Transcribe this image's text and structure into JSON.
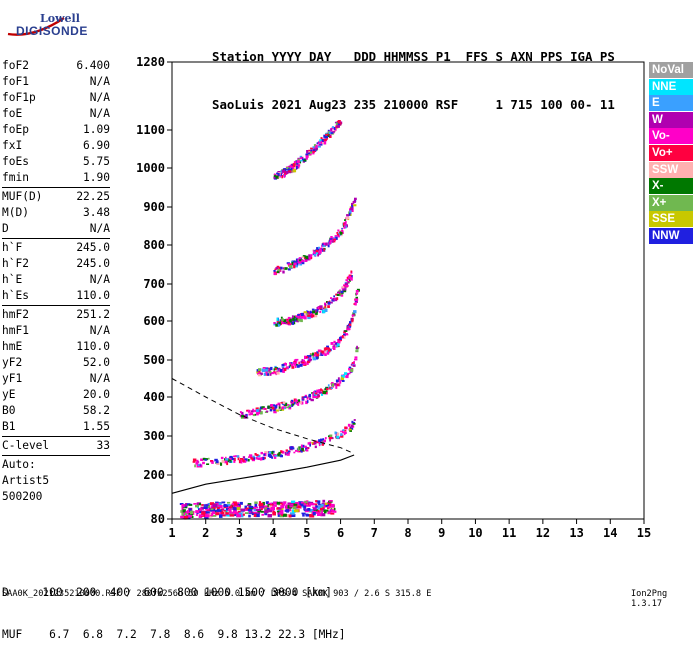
{
  "logo": {
    "line1": "Lowell",
    "line2": "DIGISONDE"
  },
  "header": {
    "row1": "Station YYYY DAY   DDD HHMMSS P1  FFS S AXN PPS IGA PS",
    "row2": "SaoLuis 2021 Aug23 235 210000 RSF     1 715 100 00- 11"
  },
  "params": [
    {
      "k": "foF2",
      "v": "6.400"
    },
    {
      "k": "foF1",
      "v": "N/A"
    },
    {
      "k": "foF1p",
      "v": "N/A"
    },
    {
      "k": "foE",
      "v": "N/A"
    },
    {
      "k": "foEp",
      "v": "1.09"
    },
    {
      "k": "fxI",
      "v": "6.90"
    },
    {
      "k": "foEs",
      "v": "5.75"
    },
    {
      "k": "fmin",
      "v": "1.90"
    },
    {
      "k": "MUF(D)",
      "v": "22.25",
      "sep": true
    },
    {
      "k": "M(D)",
      "v": "3.48"
    },
    {
      "k": "D",
      "v": "N/A"
    },
    {
      "k": "h`F",
      "v": "245.0",
      "sep": true
    },
    {
      "k": "h`F2",
      "v": "245.0"
    },
    {
      "k": "h`E",
      "v": "N/A"
    },
    {
      "k": "h`Es",
      "v": "110.0"
    },
    {
      "k": "hmF2",
      "v": "251.2",
      "sep": true
    },
    {
      "k": "hmF1",
      "v": "N/A"
    },
    {
      "k": "hmE",
      "v": "110.0"
    },
    {
      "k": "yF2",
      "v": "52.0"
    },
    {
      "k": "yF1",
      "v": "N/A"
    },
    {
      "k": "yE",
      "v": "20.0"
    },
    {
      "k": "B0",
      "v": "58.2"
    },
    {
      "k": "B1",
      "v": "1.55"
    },
    {
      "k": "C-level",
      "v": "33",
      "sep": true
    },
    {
      "k": "Auto:",
      "v": "",
      "sep": true
    },
    {
      "k": "Artist5",
      "v": ""
    },
    {
      "k": "500200",
      "v": ""
    }
  ],
  "legend": [
    {
      "label": "NoVal",
      "color": "#a0a0a0"
    },
    {
      "label": "NNE",
      "color": "#00e5ff"
    },
    {
      "label": "E",
      "color": "#3aa0ff"
    },
    {
      "label": "W",
      "color": "#b000b0"
    },
    {
      "label": "Vo-",
      "color": "#ff00c8"
    },
    {
      "label": "Vo+",
      "color": "#ff0040"
    },
    {
      "label": "SSW",
      "color": "#ffb0b0"
    },
    {
      "label": "X-",
      "color": "#007800"
    },
    {
      "label": "X+",
      "color": "#70b850"
    },
    {
      "label": "SSE",
      "color": "#c8c800"
    },
    {
      "label": "NNW",
      "color": "#2020e0"
    }
  ],
  "footer": {
    "row1": "D     100  200  400  600  800 1000 1500 3000 [km]",
    "row2": "MUF    6.7  6.8  7.2  7.8  8.6  9.8 13.2 22.3 [MHz]",
    "line": "SAA0K_2021235210000.RSF / 280fx256h 50 kHz 5.0 km / DPS-4 SAA0K 903 / 2.6 S 315.8 E",
    "version": "Ion2Png 1.3.17"
  },
  "chart_data": {
    "type": "scatter",
    "title": "",
    "xlabel": "",
    "ylabel": "",
    "xlim": [
      1,
      15
    ],
    "ylim": [
      80,
      1280
    ],
    "xticks": [
      1,
      2,
      3,
      4,
      5,
      6,
      7,
      8,
      9,
      10,
      11,
      12,
      13,
      14,
      15
    ],
    "yticks": [
      80,
      200,
      300,
      400,
      500,
      600,
      700,
      800,
      900,
      1000,
      1100,
      1280
    ],
    "grid": false,
    "series": [
      {
        "trace": "F2 first hop",
        "freq_mhz": [
          1.6,
          2.0,
          2.5,
          3.0,
          3.5,
          4.0,
          4.5,
          5.0,
          5.5,
          6.0,
          6.3,
          6.4
        ],
        "height_km": [
          235,
          237,
          240,
          245,
          250,
          257,
          265,
          275,
          290,
          310,
          330,
          350
        ]
      },
      {
        "trace": "F2 second hop",
        "freq_mhz": [
          3.0,
          3.5,
          4.0,
          4.5,
          5.0,
          5.5,
          6.0,
          6.3,
          6.5
        ],
        "height_km": [
          355,
          365,
          375,
          385,
          400,
          420,
          450,
          480,
          540
        ]
      },
      {
        "trace": "F2 third hop",
        "freq_mhz": [
          3.5,
          4.0,
          4.5,
          5.0,
          5.5,
          6.0,
          6.3,
          6.5
        ],
        "height_km": [
          470,
          475,
          490,
          505,
          525,
          555,
          600,
          700
        ]
      },
      {
        "trace": "F2 fourth hop",
        "freq_mhz": [
          4.0,
          4.5,
          5.0,
          5.5,
          6.0,
          6.3
        ],
        "height_km": [
          600,
          605,
          620,
          640,
          680,
          730
        ]
      },
      {
        "trace": "F2 fifth hop",
        "freq_mhz": [
          4.0,
          4.5,
          5.0,
          5.5,
          6.0,
          6.4
        ],
        "height_km": [
          735,
          750,
          770,
          800,
          840,
          920
        ]
      },
      {
        "trace": "F2 sixth hop",
        "freq_mhz": [
          4.0,
          4.5,
          5.0,
          5.5,
          6.0
        ],
        "height_km": [
          980,
          1000,
          1040,
          1080,
          1130
        ]
      },
      {
        "trace": "Es",
        "freq_mhz": [
          1.2,
          2.0,
          3.0,
          4.0,
          5.0,
          5.75
        ],
        "height_km": [
          105,
          108,
          110,
          110,
          112,
          115
        ]
      }
    ],
    "profile_curve": {
      "freq_mhz": [
        1.0,
        2.0,
        3.0,
        4.0,
        5.0,
        6.0,
        6.4
      ],
      "height_km": [
        150,
        175,
        190,
        205,
        220,
        238,
        251.2
      ]
    },
    "topside_curve": {
      "freq_mhz": [
        1.0,
        2.0,
        3.0,
        4.0,
        5.0,
        6.0,
        6.4
      ],
      "height_km": [
        450,
        400,
        355,
        320,
        293,
        270,
        255
      ]
    }
  }
}
